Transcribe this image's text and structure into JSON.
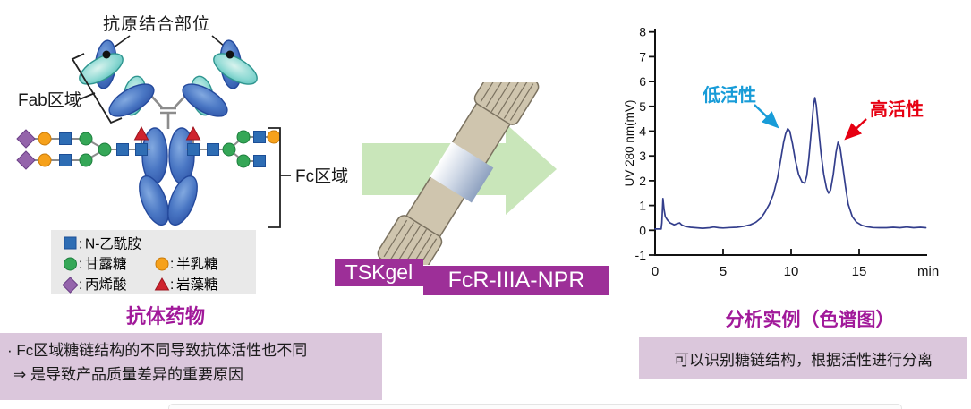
{
  "antibody": {
    "antigen_binding_label": "抗原结合部位",
    "fab_label": "Fab区域",
    "fc_label": "Fc区域",
    "legend": {
      "colon": ":",
      "items": [
        {
          "symbol": "blue-square",
          "color": "#2e6db4",
          "label": "N-乙酰胺"
        },
        {
          "symbol": "green-circle",
          "color": "#35a757",
          "label": "甘露糖"
        },
        {
          "symbol": "orange-circle",
          "color": "#f6a11b",
          "label": "半乳糖"
        },
        {
          "symbol": "purple-diamond",
          "color": "#9464ab",
          "label": "丙烯酸"
        },
        {
          "symbol": "red-triangle",
          "color": "#cf232e",
          "label": "岩藻糖"
        }
      ]
    },
    "title": "抗体药物",
    "note": {
      "line1": "· Fc区域糖链结构的不同导致抗体活性也不同",
      "line2": "⇒ 是导致产品质量差异的重要原因"
    }
  },
  "column": {
    "brand": "TSKgel",
    "model": "FcR-IIIA-NPR"
  },
  "chromatogram": {
    "title": "分析实例（色谱图）",
    "note": "可以识别糖链结构，根据活性进行分离"
  },
  "colors": {
    "accent_purple": "#9d2f98",
    "title_purple": "#a1199a",
    "note_box_purple": "#dbc7dc",
    "arrow_green": "#c9e6ba",
    "column_tan": "#cfc5ae",
    "trace_navy": "#333e8c",
    "low_activity_blue": "#189cd8",
    "high_activity_red": "#e60012"
  },
  "chart_data": {
    "type": "line",
    "title": "",
    "xlabel": "min",
    "ylabel": "UV 280 nm(mV)",
    "xlim": [
      0,
      20
    ],
    "ylim": [
      -1,
      8
    ],
    "x_ticks": [
      0,
      5,
      10,
      15
    ],
    "y_ticks": [
      8,
      7,
      6,
      5,
      4,
      3,
      2,
      1,
      0,
      -1
    ],
    "grid": false,
    "legend_position": "none",
    "trace_color": "#333e8c",
    "peaks": [
      {
        "t_min": 9.75,
        "mv": 4.1
      },
      {
        "t_min": 11.75,
        "mv": 5.35
      },
      {
        "t_min": 13.45,
        "mv": 3.55
      }
    ],
    "annotations": [
      {
        "text": "低活性",
        "color": "#189cd8",
        "target_min": 9.75,
        "target_mv": 4.1
      },
      {
        "text": "高活性",
        "color": "#e60012",
        "target_min": 13.45,
        "target_mv": 3.55
      }
    ],
    "series": [
      {
        "name": "UV 280 nm(mV)",
        "points": [
          [
            0,
            0.05
          ],
          [
            0.45,
            0.05
          ],
          [
            0.5,
            0.3
          ],
          [
            0.58,
            1.28
          ],
          [
            0.66,
            0.85
          ],
          [
            0.75,
            0.55
          ],
          [
            0.9,
            0.42
          ],
          [
            1.1,
            0.3
          ],
          [
            1.4,
            0.22
          ],
          [
            1.6,
            0.26
          ],
          [
            1.8,
            0.3
          ],
          [
            1.95,
            0.22
          ],
          [
            2.2,
            0.16
          ],
          [
            2.6,
            0.12
          ],
          [
            3,
            0.1
          ],
          [
            3.5,
            0.08
          ],
          [
            4,
            0.1
          ],
          [
            4.3,
            0.13
          ],
          [
            4.7,
            0.1
          ],
          [
            5,
            0.09
          ],
          [
            5.5,
            0.11
          ],
          [
            6,
            0.12
          ],
          [
            6.5,
            0.16
          ],
          [
            7,
            0.22
          ],
          [
            7.4,
            0.32
          ],
          [
            7.8,
            0.5
          ],
          [
            8.1,
            0.75
          ],
          [
            8.4,
            1.05
          ],
          [
            8.7,
            1.45
          ],
          [
            9,
            2.1
          ],
          [
            9.25,
            2.9
          ],
          [
            9.45,
            3.55
          ],
          [
            9.6,
            3.9
          ],
          [
            9.75,
            4.1
          ],
          [
            9.9,
            4.0
          ],
          [
            10.1,
            3.5
          ],
          [
            10.3,
            2.85
          ],
          [
            10.55,
            2.25
          ],
          [
            10.8,
            1.95
          ],
          [
            11,
            1.9
          ],
          [
            11.15,
            2.2
          ],
          [
            11.3,
            2.9
          ],
          [
            11.5,
            4.1
          ],
          [
            11.65,
            5.05
          ],
          [
            11.75,
            5.35
          ],
          [
            11.85,
            5.05
          ],
          [
            12,
            4.2
          ],
          [
            12.2,
            3.1
          ],
          [
            12.4,
            2.25
          ],
          [
            12.6,
            1.7
          ],
          [
            12.75,
            1.5
          ],
          [
            12.9,
            1.62
          ],
          [
            13.1,
            2.25
          ],
          [
            13.3,
            3.15
          ],
          [
            13.45,
            3.55
          ],
          [
            13.6,
            3.35
          ],
          [
            13.8,
            2.55
          ],
          [
            14,
            1.75
          ],
          [
            14.2,
            1.05
          ],
          [
            14.5,
            0.55
          ],
          [
            14.8,
            0.33
          ],
          [
            15.2,
            0.2
          ],
          [
            15.6,
            0.14
          ],
          [
            16,
            0.11
          ],
          [
            16.5,
            0.1
          ],
          [
            17,
            0.1
          ],
          [
            17.5,
            0.12
          ],
          [
            18,
            0.1
          ],
          [
            18.5,
            0.13
          ],
          [
            19,
            0.1
          ],
          [
            19.5,
            0.12
          ],
          [
            19.9,
            0.1
          ]
        ]
      }
    ]
  }
}
